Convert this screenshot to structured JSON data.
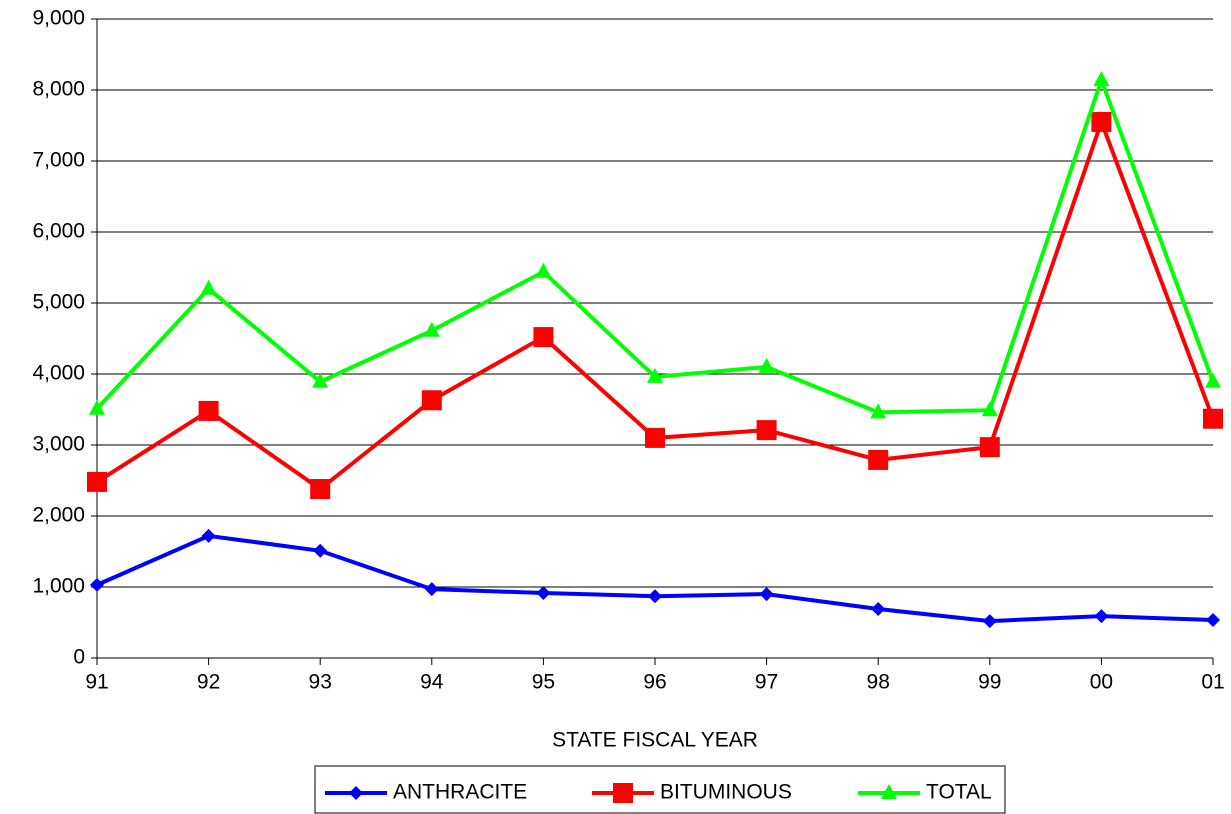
{
  "chart_data": {
    "type": "line",
    "x_label": "STATE FISCAL YEAR",
    "categories": [
      "91",
      "92",
      "93",
      "94",
      "95",
      "96",
      "97",
      "98",
      "99",
      "00",
      "01"
    ],
    "series": [
      {
        "name": "ANTHRACITE",
        "color": "#0000ff",
        "marker": "diamond",
        "values": [
          1030,
          1720,
          1510,
          970,
          915,
          870,
          900,
          690,
          520,
          590,
          535
        ]
      },
      {
        "name": "BITUMINOUS",
        "color": "#ff0000",
        "marker": "square",
        "values": [
          2480,
          3480,
          2380,
          3630,
          4520,
          3100,
          3210,
          2790,
          2970,
          7550,
          3370
        ]
      },
      {
        "name": "TOTAL",
        "color": "#00ff00",
        "marker": "triangle",
        "values": [
          3510,
          5200,
          3890,
          4610,
          5440,
          3960,
          4100,
          3460,
          3490,
          8140,
          3890
        ]
      }
    ],
    "ylim": [
      0,
      9000
    ],
    "yticks": [
      0,
      {
        "value": 1000,
        "label": "1,000"
      },
      {
        "value": 2000,
        "label": "2,000"
      },
      {
        "value": 3000,
        "label": "3,000"
      },
      {
        "value": 4000,
        "label": "4,000"
      },
      {
        "value": 5000,
        "label": "5,000"
      },
      {
        "value": 6000,
        "label": "6,000"
      },
      {
        "value": 7000,
        "label": "7,000"
      },
      {
        "value": 8000,
        "label": "8,000"
      },
      {
        "value": 9000,
        "label": "9,000"
      }
    ],
    "grid": true,
    "legend": "bottom"
  }
}
